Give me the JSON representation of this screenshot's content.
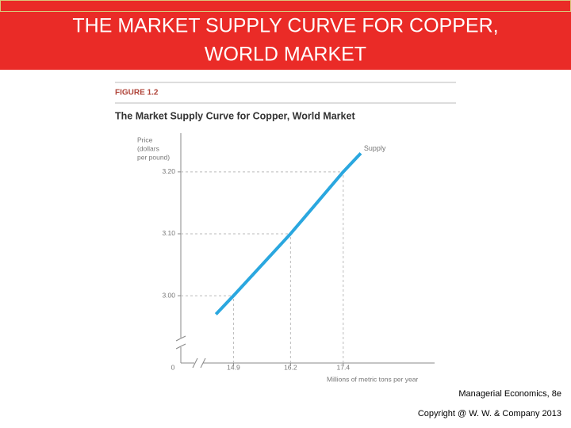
{
  "header": {
    "title_lines": [
      "THE MARKET SUPPLY CURVE FOR COPPER,",
      "WORLD MARKET"
    ]
  },
  "chart_data": {
    "type": "line",
    "figure_label": "FIGURE 1.2",
    "title": "The Market Supply Curve for Copper, World Market",
    "ylabel": [
      "Price",
      "(dollars",
      "per pound)"
    ],
    "xlabel": "Millions of metric tons per year",
    "origin_label": "0",
    "x": [
      14.5,
      14.9,
      16.2,
      17.4,
      17.8
    ],
    "series": [
      {
        "name": "Supply",
        "color": "#2aa7df",
        "values": [
          2.97,
          3.0,
          3.1,
          3.2,
          3.23
        ]
      }
    ],
    "xlim": [
      13.7,
      19.5
    ],
    "xticks": [
      14.9,
      16.2,
      17.4
    ],
    "ylim": [
      2.89,
      3.26
    ],
    "yticks": [
      {
        "value": 3.0,
        "label": "3.00"
      },
      {
        "value": 3.1,
        "label": "3.10"
      },
      {
        "value": 3.2,
        "label": "3.20"
      }
    ],
    "guides": true
  },
  "footer": {
    "lines": [
      "Managerial Economics, 8e",
      "Copyright @ W. W. & Company 2013"
    ]
  }
}
